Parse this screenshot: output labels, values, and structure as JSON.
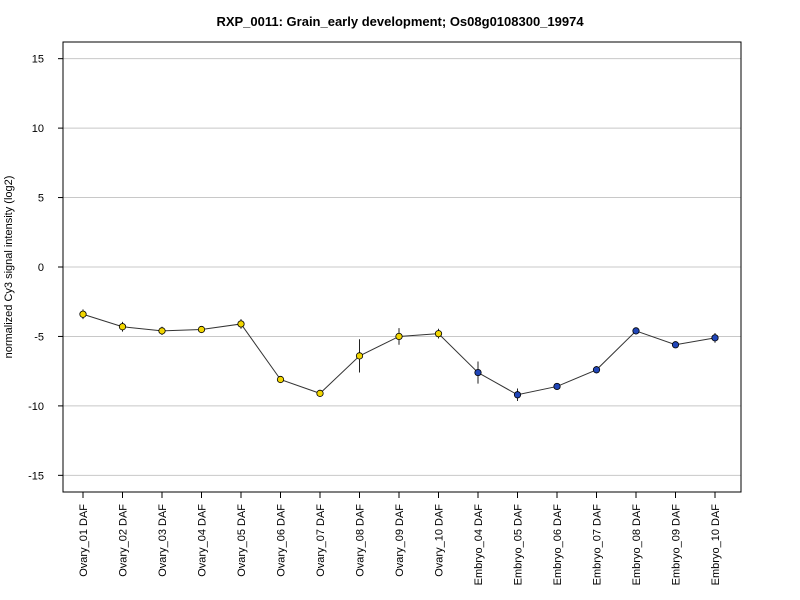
{
  "chart_data": {
    "type": "line",
    "title": "RXP_0011: Grain_early development; Os08g0108300_19974",
    "xlabel": "",
    "ylabel": "normalized Cy3 signal intensity (log2)",
    "ylim": [
      -16.2,
      16.2
    ],
    "yticks": [
      15,
      10,
      5,
      0,
      -5,
      -10,
      -15
    ],
    "ytick_labels": [
      "15",
      "10",
      "5",
      "0",
      "-5",
      "-10",
      "-15"
    ],
    "grid": true,
    "categories": [
      "Ovary_01 DAF",
      "Ovary_02 DAF",
      "Ovary_03 DAF",
      "Ovary_04 DAF",
      "Ovary_05 DAF",
      "Ovary_06 DAF",
      "Ovary_07 DAF",
      "Ovary_08 DAF",
      "Ovary_09 DAF",
      "Ovary_10 DAF",
      "Embryo_04 DAF",
      "Embryo_05 DAF",
      "Embryo_06 DAF",
      "Embryo_07 DAF",
      "Embryo_08 DAF",
      "Embryo_09 DAF",
      "Embryo_10 DAF"
    ],
    "values": [
      -3.4,
      -4.3,
      -4.6,
      -4.5,
      -4.1,
      -8.1,
      -9.1,
      -6.4,
      -5.0,
      -4.8,
      -7.6,
      -9.2,
      -8.6,
      -7.4,
      -4.6,
      -5.6,
      -5.1
    ],
    "errors": [
      0.35,
      0.35,
      0.3,
      0.2,
      0.35,
      0.2,
      0.25,
      1.2,
      0.6,
      0.35,
      0.8,
      0.45,
      0.15,
      0.25,
      0.15,
      0.15,
      0.35
    ],
    "point_colors": [
      "#f2d600",
      "#f2d600",
      "#f2d600",
      "#f2d600",
      "#f2d600",
      "#f2d600",
      "#f2d600",
      "#f2d600",
      "#f2d600",
      "#f2d600",
      "#2146b8",
      "#2146b8",
      "#2146b8",
      "#2146b8",
      "#2146b8",
      "#2146b8",
      "#2146b8"
    ],
    "line_color": "#333333",
    "grid_color": "#c8c8c8"
  }
}
